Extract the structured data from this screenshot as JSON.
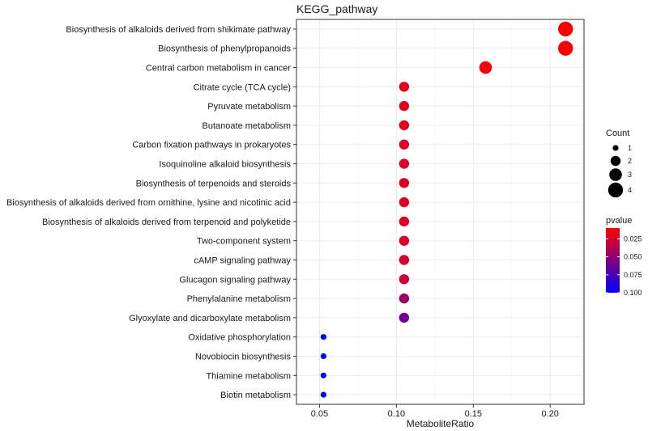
{
  "chart_data": {
    "type": "scatter",
    "title": "KEGG_pathway",
    "xlabel": "MetaboliteRatio",
    "ylabel": "",
    "xlim": [
      0.035,
      0.222
    ],
    "xticks": [
      0.05,
      0.1,
      0.15,
      0.2
    ],
    "xtick_labels": [
      "0.05",
      "0.10",
      "0.15",
      "0.20"
    ],
    "grid": true,
    "points": [
      {
        "pathway": "Biosynthesis of alkaloids derived from shikimate pathway",
        "ratio": 0.21,
        "count": 4,
        "pvalue": 0.01
      },
      {
        "pathway": "Biosynthesis of phenylpropanoids",
        "ratio": 0.21,
        "count": 4,
        "pvalue": 0.01
      },
      {
        "pathway": "Central carbon metabolism in cancer",
        "ratio": 0.158,
        "count": 3,
        "pvalue": 0.013
      },
      {
        "pathway": "Citrate cycle (TCA cycle)",
        "ratio": 0.105,
        "count": 2,
        "pvalue": 0.02
      },
      {
        "pathway": "Pyruvate metabolism",
        "ratio": 0.105,
        "count": 2,
        "pvalue": 0.021
      },
      {
        "pathway": "Butanoate metabolism",
        "ratio": 0.105,
        "count": 2,
        "pvalue": 0.021
      },
      {
        "pathway": "Carbon fixation pathways in prokaryotes",
        "ratio": 0.105,
        "count": 2,
        "pvalue": 0.022
      },
      {
        "pathway": "Isoquinoline alkaloid biosynthesis",
        "ratio": 0.105,
        "count": 2,
        "pvalue": 0.022
      },
      {
        "pathway": "Biosynthesis of terpenoids and steroids",
        "ratio": 0.105,
        "count": 2,
        "pvalue": 0.022
      },
      {
        "pathway": "Biosynthesis of alkaloids derived from ornithine, lysine and nicotinic acid",
        "ratio": 0.105,
        "count": 2,
        "pvalue": 0.022
      },
      {
        "pathway": "Biosynthesis of alkaloids derived from terpenoid and polyketide",
        "ratio": 0.105,
        "count": 2,
        "pvalue": 0.022
      },
      {
        "pathway": "Two-component system",
        "ratio": 0.105,
        "count": 2,
        "pvalue": 0.023
      },
      {
        "pathway": "cAMP signaling pathway",
        "ratio": 0.105,
        "count": 2,
        "pvalue": 0.025
      },
      {
        "pathway": "Glucagon signaling pathway",
        "ratio": 0.105,
        "count": 2,
        "pvalue": 0.028
      },
      {
        "pathway": "Phenylalanine metabolism",
        "ratio": 0.105,
        "count": 2,
        "pvalue": 0.045
      },
      {
        "pathway": "Glyoxylate and dicarboxylate metabolism",
        "ratio": 0.105,
        "count": 2,
        "pvalue": 0.06
      },
      {
        "pathway": "Oxidative phosphorylation",
        "ratio": 0.0526,
        "count": 1,
        "pvalue": 0.1
      },
      {
        "pathway": "Novobiocin biosynthesis",
        "ratio": 0.0526,
        "count": 1,
        "pvalue": 0.1
      },
      {
        "pathway": "Thiamine metabolism",
        "ratio": 0.0526,
        "count": 1,
        "pvalue": 0.1
      },
      {
        "pathway": "Biotin metabolism",
        "ratio": 0.0526,
        "count": 1,
        "pvalue": 0.1
      }
    ],
    "size_legend": {
      "title": "Count",
      "values": [
        1,
        2,
        3,
        4
      ],
      "labels": [
        "1",
        "2",
        "3",
        "4"
      ]
    },
    "color_legend": {
      "title": "pvalue",
      "low_color": "#ff0000",
      "high_color": "#0000ff",
      "range": [
        0.01,
        0.1
      ],
      "ticks": [
        0.025,
        0.05,
        0.075,
        0.1
      ],
      "tick_labels": [
        "0.025",
        "0.050",
        "0.075",
        "0.100"
      ]
    },
    "colors": {
      "panel_border": "#333333",
      "gridline": "#ebebeb",
      "text": "#1a1a1a"
    }
  }
}
